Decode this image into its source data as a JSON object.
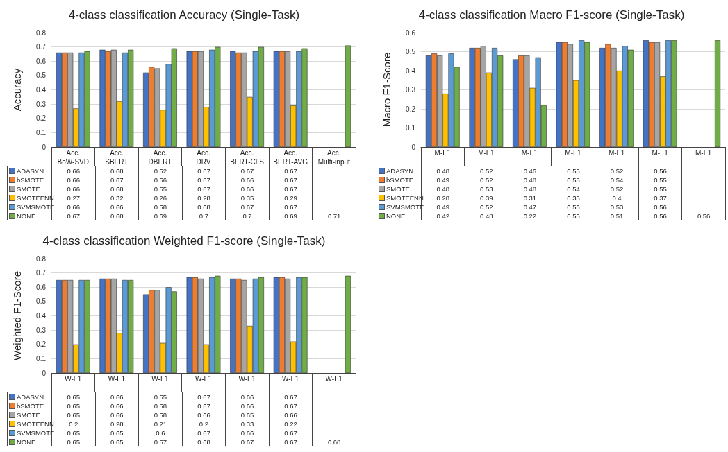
{
  "chart_data": [
    {
      "type": "bar",
      "title": "4-class classification Accuracy (Single-Task)",
      "ylabel": "Accuracy",
      "categories": [
        "Acc.\nBoW-SVD",
        "Acc.\nSBERT",
        "Acc.\nDBERT",
        "Acc.\nDRV",
        "Acc.\nBERT-CLS",
        "Acc.\nBERT-AVG",
        "Acc.\nMulti-input"
      ],
      "series": [
        {
          "name": "ADASYN",
          "color": "#4472c4",
          "values": [
            0.66,
            0.68,
            0.52,
            0.67,
            0.67,
            0.67,
            null
          ]
        },
        {
          "name": "bSMOTE",
          "color": "#ed7d31",
          "values": [
            0.66,
            0.67,
            0.56,
            0.67,
            0.66,
            0.67,
            null
          ]
        },
        {
          "name": "SMOTE",
          "color": "#a5a5a5",
          "values": [
            0.66,
            0.68,
            0.55,
            0.67,
            0.66,
            0.67,
            null
          ]
        },
        {
          "name": "SMOTEENN",
          "color": "#ffc000",
          "values": [
            0.27,
            0.32,
            0.26,
            0.28,
            0.35,
            0.29,
            null
          ]
        },
        {
          "name": "SVMSMOTE",
          "color": "#5b9bd5",
          "values": [
            0.66,
            0.66,
            0.58,
            0.68,
            0.67,
            0.67,
            null
          ]
        },
        {
          "name": "NONE",
          "color": "#70ad47",
          "values": [
            0.67,
            0.68,
            0.69,
            0.7,
            0.7,
            0.69,
            0.71
          ]
        }
      ],
      "ylim": [
        0,
        0.8
      ],
      "yticks": [
        0,
        0.1,
        0.2,
        0.3,
        0.4,
        0.5,
        0.6,
        0.7,
        0.8
      ],
      "grid": "y",
      "legend": "bottom",
      "data_labels": true
    },
    {
      "type": "bar",
      "title": "4-class classification Macro F1-score (Single-Task)",
      "ylabel": "Macro F1-Score",
      "categories": [
        "M-F1",
        "M-F1",
        "M-F1",
        "M-F1",
        "M-F1",
        "M-F1",
        "M-F1"
      ],
      "series": [
        {
          "name": "ADASYN",
          "color": "#4472c4",
          "values": [
            0.48,
            0.52,
            0.46,
            0.55,
            0.52,
            0.56,
            null
          ]
        },
        {
          "name": "bSMOTE",
          "color": "#ed7d31",
          "values": [
            0.49,
            0.52,
            0.48,
            0.55,
            0.54,
            0.55,
            null
          ]
        },
        {
          "name": "SMOTE",
          "color": "#a5a5a5",
          "values": [
            0.48,
            0.53,
            0.48,
            0.54,
            0.52,
            0.55,
            null
          ]
        },
        {
          "name": "SMOTEENN",
          "color": "#ffc000",
          "values": [
            0.28,
            0.39,
            0.31,
            0.35,
            0.4,
            0.37,
            null
          ]
        },
        {
          "name": "SVMSMOTE",
          "color": "#5b9bd5",
          "values": [
            0.49,
            0.52,
            0.47,
            0.56,
            0.53,
            0.56,
            null
          ]
        },
        {
          "name": "NONE",
          "color": "#70ad47",
          "values": [
            0.42,
            0.48,
            0.22,
            0.55,
            0.51,
            0.56,
            0.56
          ]
        }
      ],
      "ylim": [
        0,
        0.6
      ],
      "yticks": [
        0,
        0.1,
        0.2,
        0.3,
        0.4,
        0.5,
        0.6
      ],
      "grid": "y",
      "legend": "bottom",
      "data_labels": true
    },
    {
      "type": "bar",
      "title": "4-class classification Weighted F1-score (Single-Task)",
      "ylabel": "Weighted F1-Score",
      "categories": [
        "W-F1",
        "W-F1",
        "W-F1",
        "W-F1",
        "W-F1",
        "W-F1",
        "W-F1"
      ],
      "series": [
        {
          "name": "ADASYN",
          "color": "#4472c4",
          "values": [
            0.65,
            0.66,
            0.55,
            0.67,
            0.66,
            0.67,
            null
          ]
        },
        {
          "name": "bSMOTE",
          "color": "#ed7d31",
          "values": [
            0.65,
            0.66,
            0.58,
            0.67,
            0.66,
            0.67,
            null
          ]
        },
        {
          "name": "SMOTE",
          "color": "#a5a5a5",
          "values": [
            0.65,
            0.66,
            0.58,
            0.66,
            0.65,
            0.66,
            null
          ]
        },
        {
          "name": "SMOTEENN",
          "color": "#ffc000",
          "values": [
            0.2,
            0.28,
            0.21,
            0.2,
            0.33,
            0.22,
            null
          ]
        },
        {
          "name": "SVMSMOTE",
          "color": "#5b9bd5",
          "values": [
            0.65,
            0.65,
            0.6,
            0.67,
            0.66,
            0.67,
            null
          ]
        },
        {
          "name": "NONE",
          "color": "#70ad47",
          "values": [
            0.65,
            0.65,
            0.57,
            0.68,
            0.67,
            0.67,
            0.68
          ]
        }
      ],
      "ylim": [
        0,
        0.8
      ],
      "yticks": [
        0,
        0.1,
        0.2,
        0.3,
        0.4,
        0.5,
        0.6,
        0.7,
        0.8
      ],
      "grid": "y",
      "legend": "bottom",
      "data_labels": true
    }
  ]
}
